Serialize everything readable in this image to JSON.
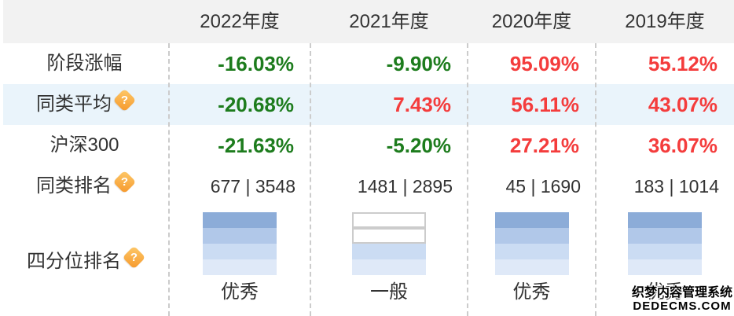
{
  "colors": {
    "up_red": "#f43c3c",
    "down_green": "#1d7c1d",
    "header_bg": "#f2f2f2",
    "alt_row_bg": "#eaf4fb",
    "text": "#333333",
    "divider": "#cccccc",
    "bar_palette": [
      "#8cacd8",
      "#b1c8e9",
      "#cbdcf3",
      "#dfe9f8"
    ],
    "bar_empty_border": "#cccccc",
    "icon_gradient_start": "#fdc96a",
    "icon_gradient_end": "#f6982b"
  },
  "header": {
    "columns": [
      "2022年度",
      "2021年度",
      "2020年度",
      "2019年度"
    ]
  },
  "rows": {
    "help_icon_glyph": "?",
    "value_rows": [
      {
        "label": "阶段涨幅",
        "help_icon": false,
        "alt": false,
        "values": [
          {
            "text": "-16.03%",
            "trend": "down"
          },
          {
            "text": "-9.90%",
            "trend": "down"
          },
          {
            "text": "95.09%",
            "trend": "up"
          },
          {
            "text": "55.12%",
            "trend": "up"
          }
        ]
      },
      {
        "label": "同类平均",
        "help_icon": true,
        "alt": true,
        "values": [
          {
            "text": "-20.68%",
            "trend": "down"
          },
          {
            "text": "7.43%",
            "trend": "up"
          },
          {
            "text": "56.11%",
            "trend": "up"
          },
          {
            "text": "43.07%",
            "trend": "up"
          }
        ]
      },
      {
        "label": "沪深300",
        "help_icon": false,
        "alt": false,
        "values": [
          {
            "text": "-21.63%",
            "trend": "down"
          },
          {
            "text": "-5.20%",
            "trend": "down"
          },
          {
            "text": "27.21%",
            "trend": "up"
          },
          {
            "text": "36.07%",
            "trend": "up"
          }
        ]
      }
    ],
    "rank_row": {
      "label": "同类排名",
      "help_icon": true,
      "values": [
        "677 | 3548",
        "1481 | 2895",
        "45 | 1690",
        "183 | 1014"
      ]
    },
    "quartile_row": {
      "label": "四分位排名",
      "help_icon": true,
      "cells": [
        {
          "filled": [
            true,
            true,
            true,
            true
          ],
          "label": "优秀"
        },
        {
          "filled": [
            false,
            false,
            true,
            true
          ],
          "label": "一般"
        },
        {
          "filled": [
            true,
            true,
            true,
            true
          ],
          "label": "优秀"
        },
        {
          "filled": [
            true,
            true,
            true,
            true
          ],
          "label": "优秀"
        }
      ]
    }
  },
  "watermark": {
    "line1": "织梦内容管理系统",
    "line2": "DEDECMS.COM"
  }
}
